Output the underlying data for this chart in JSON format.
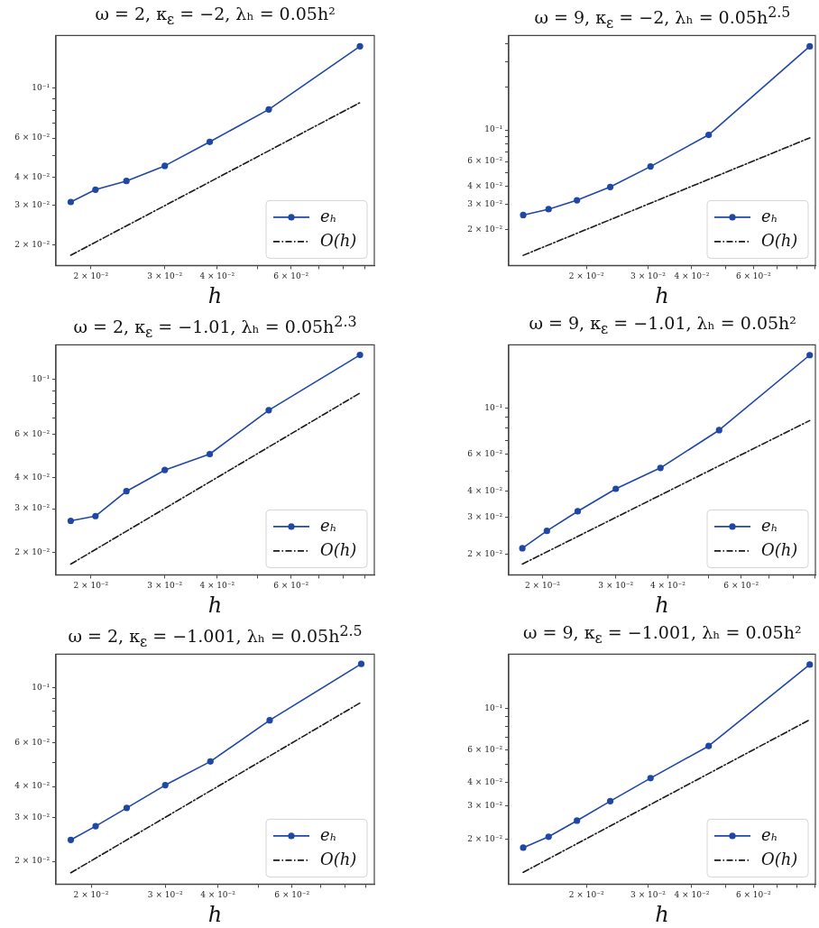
{
  "chart_data": [
    {
      "type": "line",
      "title": "ω = 2, κ$_{ε}$ = −2, λₕ = 0.05h²",
      "xlabel": "h",
      "log": "xy",
      "legend": "bottom right",
      "x": [
        0.0179,
        0.0205,
        0.0243,
        0.03,
        0.0384,
        0.0531,
        0.0876
      ],
      "xlim": [
        0.0165,
        0.0948
      ],
      "ylim": [
        0.0162,
        0.172
      ],
      "xticks": [
        {
          "value": 0.02,
          "label": "2 × 10⁻²"
        },
        {
          "value": 0.03,
          "label": "3 × 10⁻²"
        },
        {
          "value": 0.04,
          "label": "4 × 10⁻²"
        },
        {
          "value": 0.05,
          "label": null
        },
        {
          "value": 0.06,
          "label": "6 × 10⁻²"
        },
        {
          "value": 0.07,
          "label": null
        },
        {
          "value": 0.08,
          "label": null
        },
        {
          "value": 0.09,
          "label": null
        }
      ],
      "yticks": [
        {
          "value": 0.02,
          "label": "2 × 10⁻²"
        },
        {
          "value": 0.03,
          "label": "3 × 10⁻²"
        },
        {
          "value": 0.04,
          "label": "4 × 10⁻²"
        },
        {
          "value": 0.05,
          "label": null
        },
        {
          "value": 0.06,
          "label": "6 × 10⁻²"
        },
        {
          "value": 0.07,
          "label": null
        },
        {
          "value": 0.08,
          "label": null
        },
        {
          "value": 0.09,
          "label": null
        },
        {
          "value": 0.1,
          "label": "10⁻¹"
        }
      ],
      "series": [
        {
          "name": "eₕ",
          "type": "line",
          "color": "#1f47a6",
          "marker": "circle",
          "line_style": "solid",
          "values": [
            0.0311,
            0.0353,
            0.0386,
            0.0451,
            0.0577,
            0.0805,
            0.154
          ]
        },
        {
          "name": "O(h)",
          "type": "line",
          "color": "#1a1a1a",
          "marker": "none",
          "line_style": "dashed",
          "x": [
            0.0179,
            0.0876
          ],
          "values": [
            0.018,
            0.0863
          ]
        }
      ]
    },
    {
      "type": "line",
      "title": "ω = 9, κ$_{ε}$ = −2, λₕ = 0.05h$^{2.5}$",
      "xlabel": "h",
      "log": "xy",
      "legend": "bottom right",
      "x": [
        0.0132,
        0.0156,
        0.0188,
        0.0234,
        0.0305,
        0.0447,
        0.0869
      ],
      "xlim": [
        0.012,
        0.0902
      ],
      "ylim": [
        0.0112,
        0.459
      ],
      "xticks": [
        {
          "value": 0.02,
          "label": "2 × 10⁻²"
        },
        {
          "value": 0.03,
          "label": "3 × 10⁻²"
        },
        {
          "value": 0.04,
          "label": "4 × 10⁻²"
        },
        {
          "value": 0.05,
          "label": null
        },
        {
          "value": 0.06,
          "label": "6 × 10⁻²"
        },
        {
          "value": 0.07,
          "label": null
        },
        {
          "value": 0.08,
          "label": null
        },
        {
          "value": 0.09,
          "label": null
        }
      ],
      "yticks": [
        {
          "value": 0.02,
          "label": "2 × 10⁻²"
        },
        {
          "value": 0.03,
          "label": "3 × 10⁻²"
        },
        {
          "value": 0.04,
          "label": "4 × 10⁻²"
        },
        {
          "value": 0.05,
          "label": null
        },
        {
          "value": 0.06,
          "label": "6 × 10⁻²"
        },
        {
          "value": 0.07,
          "label": null
        },
        {
          "value": 0.08,
          "label": null
        },
        {
          "value": 0.09,
          "label": null
        },
        {
          "value": 0.1,
          "label": "10⁻¹"
        },
        {
          "value": 0.2,
          "label": null
        },
        {
          "value": 0.3,
          "label": null
        },
        {
          "value": 0.4,
          "label": null
        }
      ],
      "series": [
        {
          "name": "eₕ",
          "type": "line",
          "color": "#1f47a6",
          "marker": "circle",
          "line_style": "solid",
          "values": [
            0.0253,
            0.0278,
            0.0321,
            0.0398,
            0.0554,
            0.0923,
            0.385
          ]
        },
        {
          "name": "O(h)",
          "type": "line",
          "color": "#1a1a1a",
          "marker": "none",
          "line_style": "dashed",
          "x": [
            0.0132,
            0.0869
          ],
          "values": [
            0.0132,
            0.0879
          ]
        }
      ]
    },
    {
      "type": "line",
      "title": "ω = 2, κ$_{ε}$ = −1.01, λₕ = 0.05h$^{2.3}$",
      "xlabel": "h",
      "log": "xy",
      "legend": "bottom right",
      "x": [
        0.0179,
        0.0205,
        0.0243,
        0.03,
        0.0384,
        0.0531,
        0.0876
      ],
      "xlim": [
        0.0165,
        0.0948
      ],
      "ylim": [
        0.0162,
        0.138
      ],
      "xticks": [
        {
          "value": 0.02,
          "label": "2 × 10⁻²"
        },
        {
          "value": 0.03,
          "label": "3 × 10⁻²"
        },
        {
          "value": 0.04,
          "label": "4 × 10⁻²"
        },
        {
          "value": 0.05,
          "label": null
        },
        {
          "value": 0.06,
          "label": "6 × 10⁻²"
        },
        {
          "value": 0.07,
          "label": null
        },
        {
          "value": 0.08,
          "label": null
        },
        {
          "value": 0.09,
          "label": null
        }
      ],
      "yticks": [
        {
          "value": 0.02,
          "label": "2 × 10⁻²"
        },
        {
          "value": 0.03,
          "label": "3 × 10⁻²"
        },
        {
          "value": 0.04,
          "label": "4 × 10⁻²"
        },
        {
          "value": 0.05,
          "label": null
        },
        {
          "value": 0.06,
          "label": "6 × 10⁻²"
        },
        {
          "value": 0.07,
          "label": null
        },
        {
          "value": 0.08,
          "label": null
        },
        {
          "value": 0.09,
          "label": null
        },
        {
          "value": 0.1,
          "label": "10⁻¹"
        }
      ],
      "series": [
        {
          "name": "eₕ",
          "type": "line",
          "color": "#1f47a6",
          "marker": "circle",
          "line_style": "solid",
          "values": [
            0.0268,
            0.028,
            0.0353,
            0.043,
            0.0499,
            0.0751,
            0.1256
          ]
        },
        {
          "name": "O(h)",
          "type": "line",
          "color": "#1a1a1a",
          "marker": "none",
          "line_style": "dashed",
          "x": [
            0.0179,
            0.0876
          ],
          "values": [
            0.0179,
            0.0881
          ]
        }
      ]
    },
    {
      "type": "line",
      "title": "ω = 9, κ$_{ε}$ = −1.01, λₕ = 0.05h²",
      "xlabel": "h",
      "log": "xy",
      "legend": "bottom right",
      "x": [
        0.0179,
        0.0205,
        0.0243,
        0.03,
        0.0384,
        0.0531,
        0.0876
      ],
      "xlim": [
        0.0166,
        0.0904
      ],
      "ylim": [
        0.0159,
        0.2
      ],
      "xticks": [
        {
          "value": 0.02,
          "label": "2 × 10⁻²"
        },
        {
          "value": 0.03,
          "label": "3 × 10⁻²"
        },
        {
          "value": 0.04,
          "label": "4 × 10⁻²"
        },
        {
          "value": 0.05,
          "label": null
        },
        {
          "value": 0.06,
          "label": "6 × 10⁻²"
        },
        {
          "value": 0.07,
          "label": null
        },
        {
          "value": 0.08,
          "label": null
        },
        {
          "value": 0.09,
          "label": null
        }
      ],
      "yticks": [
        {
          "value": 0.02,
          "label": "2 × 10⁻²"
        },
        {
          "value": 0.03,
          "label": "3 × 10⁻²"
        },
        {
          "value": 0.04,
          "label": "4 × 10⁻²"
        },
        {
          "value": 0.05,
          "label": null
        },
        {
          "value": 0.06,
          "label": "6 × 10⁻²"
        },
        {
          "value": 0.07,
          "label": null
        },
        {
          "value": 0.08,
          "label": null
        },
        {
          "value": 0.09,
          "label": null
        },
        {
          "value": 0.1,
          "label": "10⁻¹"
        }
      ],
      "series": [
        {
          "name": "eₕ",
          "type": "line",
          "color": "#1f47a6",
          "marker": "circle",
          "line_style": "solid",
          "values": [
            0.0213,
            0.0258,
            0.032,
            0.041,
            0.0516,
            0.0782,
            0.1787
          ]
        },
        {
          "name": "O(h)",
          "type": "line",
          "color": "#1a1a1a",
          "marker": "none",
          "line_style": "dashed",
          "x": [
            0.0179,
            0.0876
          ],
          "values": [
            0.0179,
            0.0869
          ]
        }
      ]
    },
    {
      "type": "line",
      "title": "ω = 2, κ$_{ε}$ = −1.001, λₕ = 0.05h$^{2.5}$",
      "xlabel": "h",
      "log": "xy",
      "legend": "bottom right",
      "x": [
        0.0179,
        0.0205,
        0.0243,
        0.03,
        0.0384,
        0.0531,
        0.0876
      ],
      "xlim": [
        0.0165,
        0.0941
      ],
      "ylim": [
        0.0162,
        0.136
      ],
      "xticks": [
        {
          "value": 0.02,
          "label": "2 × 10⁻²"
        },
        {
          "value": 0.03,
          "label": "3 × 10⁻²"
        },
        {
          "value": 0.04,
          "label": "4 × 10⁻²"
        },
        {
          "value": 0.05,
          "label": null
        },
        {
          "value": 0.06,
          "label": "6 × 10⁻²"
        },
        {
          "value": 0.07,
          "label": null
        },
        {
          "value": 0.08,
          "label": null
        },
        {
          "value": 0.09,
          "label": null
        }
      ],
      "yticks": [
        {
          "value": 0.02,
          "label": "2 × 10⁻²"
        },
        {
          "value": 0.03,
          "label": "3 × 10⁻²"
        },
        {
          "value": 0.04,
          "label": "4 × 10⁻²"
        },
        {
          "value": 0.05,
          "label": null
        },
        {
          "value": 0.06,
          "label": "6 × 10⁻²"
        },
        {
          "value": 0.07,
          "label": null
        },
        {
          "value": 0.08,
          "label": null
        },
        {
          "value": 0.09,
          "label": null
        },
        {
          "value": 0.1,
          "label": "10⁻¹"
        }
      ],
      "series": [
        {
          "name": "eₕ",
          "type": "line",
          "color": "#1f47a6",
          "marker": "circle",
          "line_style": "solid",
          "values": [
            0.0244,
            0.0277,
            0.0328,
            0.0405,
            0.0504,
            0.0738,
            0.1243
          ]
        },
        {
          "name": "O(h)",
          "type": "line",
          "color": "#1a1a1a",
          "marker": "none",
          "line_style": "dashed",
          "x": [
            0.0179,
            0.0876
          ],
          "values": [
            0.018,
            0.0872
          ]
        }
      ]
    },
    {
      "type": "line",
      "title": "ω = 9, κ$_{ε}$ = −1.001, λₕ = 0.05h²",
      "xlabel": "h",
      "log": "xy",
      "legend": "bottom right",
      "x": [
        0.0132,
        0.0156,
        0.0188,
        0.0234,
        0.0305,
        0.0447,
        0.0869
      ],
      "xlim": [
        0.012,
        0.0902
      ],
      "ylim": [
        0.0115,
        0.194
      ],
      "xticks": [
        {
          "value": 0.02,
          "label": "2 × 10⁻²"
        },
        {
          "value": 0.03,
          "label": "3 × 10⁻²"
        },
        {
          "value": 0.04,
          "label": "4 × 10⁻²"
        },
        {
          "value": 0.05,
          "label": null
        },
        {
          "value": 0.06,
          "label": "6 × 10⁻²"
        },
        {
          "value": 0.07,
          "label": null
        },
        {
          "value": 0.08,
          "label": null
        },
        {
          "value": 0.09,
          "label": null
        }
      ],
      "yticks": [
        {
          "value": 0.02,
          "label": "2 × 10⁻²"
        },
        {
          "value": 0.03,
          "label": "3 × 10⁻²"
        },
        {
          "value": 0.04,
          "label": "4 × 10⁻²"
        },
        {
          "value": 0.05,
          "label": null
        },
        {
          "value": 0.06,
          "label": "6 × 10⁻²"
        },
        {
          "value": 0.07,
          "label": null
        },
        {
          "value": 0.08,
          "label": null
        },
        {
          "value": 0.09,
          "label": null
        },
        {
          "value": 0.1,
          "label": "10⁻¹"
        }
      ],
      "series": [
        {
          "name": "eₕ",
          "type": "line",
          "color": "#1f47a6",
          "marker": "circle",
          "line_style": "solid",
          "values": [
            0.018,
            0.0206,
            0.0251,
            0.0319,
            0.0423,
            0.0628,
            0.1708
          ]
        },
        {
          "name": "O(h)",
          "type": "line",
          "color": "#1a1a1a",
          "marker": "none",
          "line_style": "dashed",
          "x": [
            0.0132,
            0.0869
          ],
          "values": [
            0.0133,
            0.0867
          ]
        }
      ]
    }
  ]
}
